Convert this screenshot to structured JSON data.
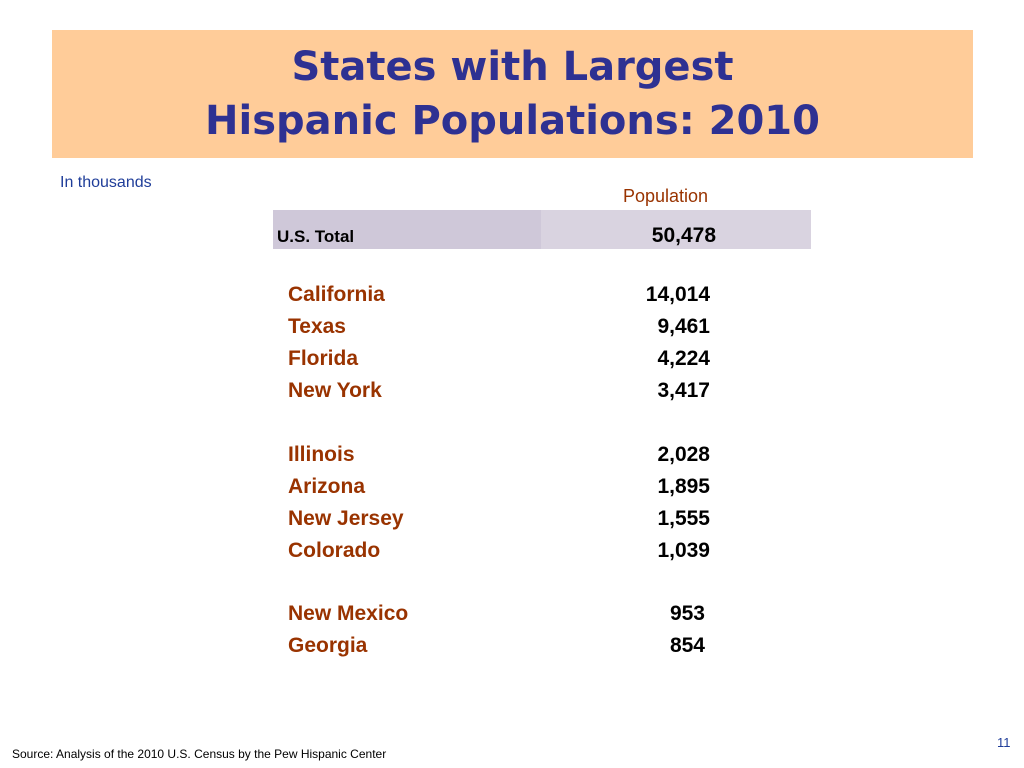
{
  "slide": {
    "title_line1": "States with Largest",
    "title_line2": "Hispanic Populations: 2010",
    "unit_note": "In thousands",
    "column_header": "Population",
    "total": {
      "label": "U.S. Total",
      "value": "50,478"
    },
    "states": [
      {
        "name": "California",
        "value": "14,014"
      },
      {
        "name": "Texas",
        "value": "9,461"
      },
      {
        "name": "Florida",
        "value": "4,224"
      },
      {
        "name": "New York",
        "value": "3,417"
      },
      {
        "name": "Illinois",
        "value": "2,028"
      },
      {
        "name": "Arizona",
        "value": "1,895"
      },
      {
        "name": "New Jersey",
        "value": "1,555"
      },
      {
        "name": "Colorado",
        "value": "1,039"
      },
      {
        "name": "New Mexico",
        "value": "953"
      },
      {
        "name": "Georgia",
        "value": "854"
      }
    ],
    "source": "Source: Analysis of the 2010 U.S. Census by the Pew Hispanic Center",
    "page_number": "11"
  },
  "colors": {
    "title_band": "#ffcc99",
    "title_text": "#2e3192",
    "state_name": "#993300",
    "total_band": "#d9d3e0",
    "note_text": "#1f3d99"
  }
}
